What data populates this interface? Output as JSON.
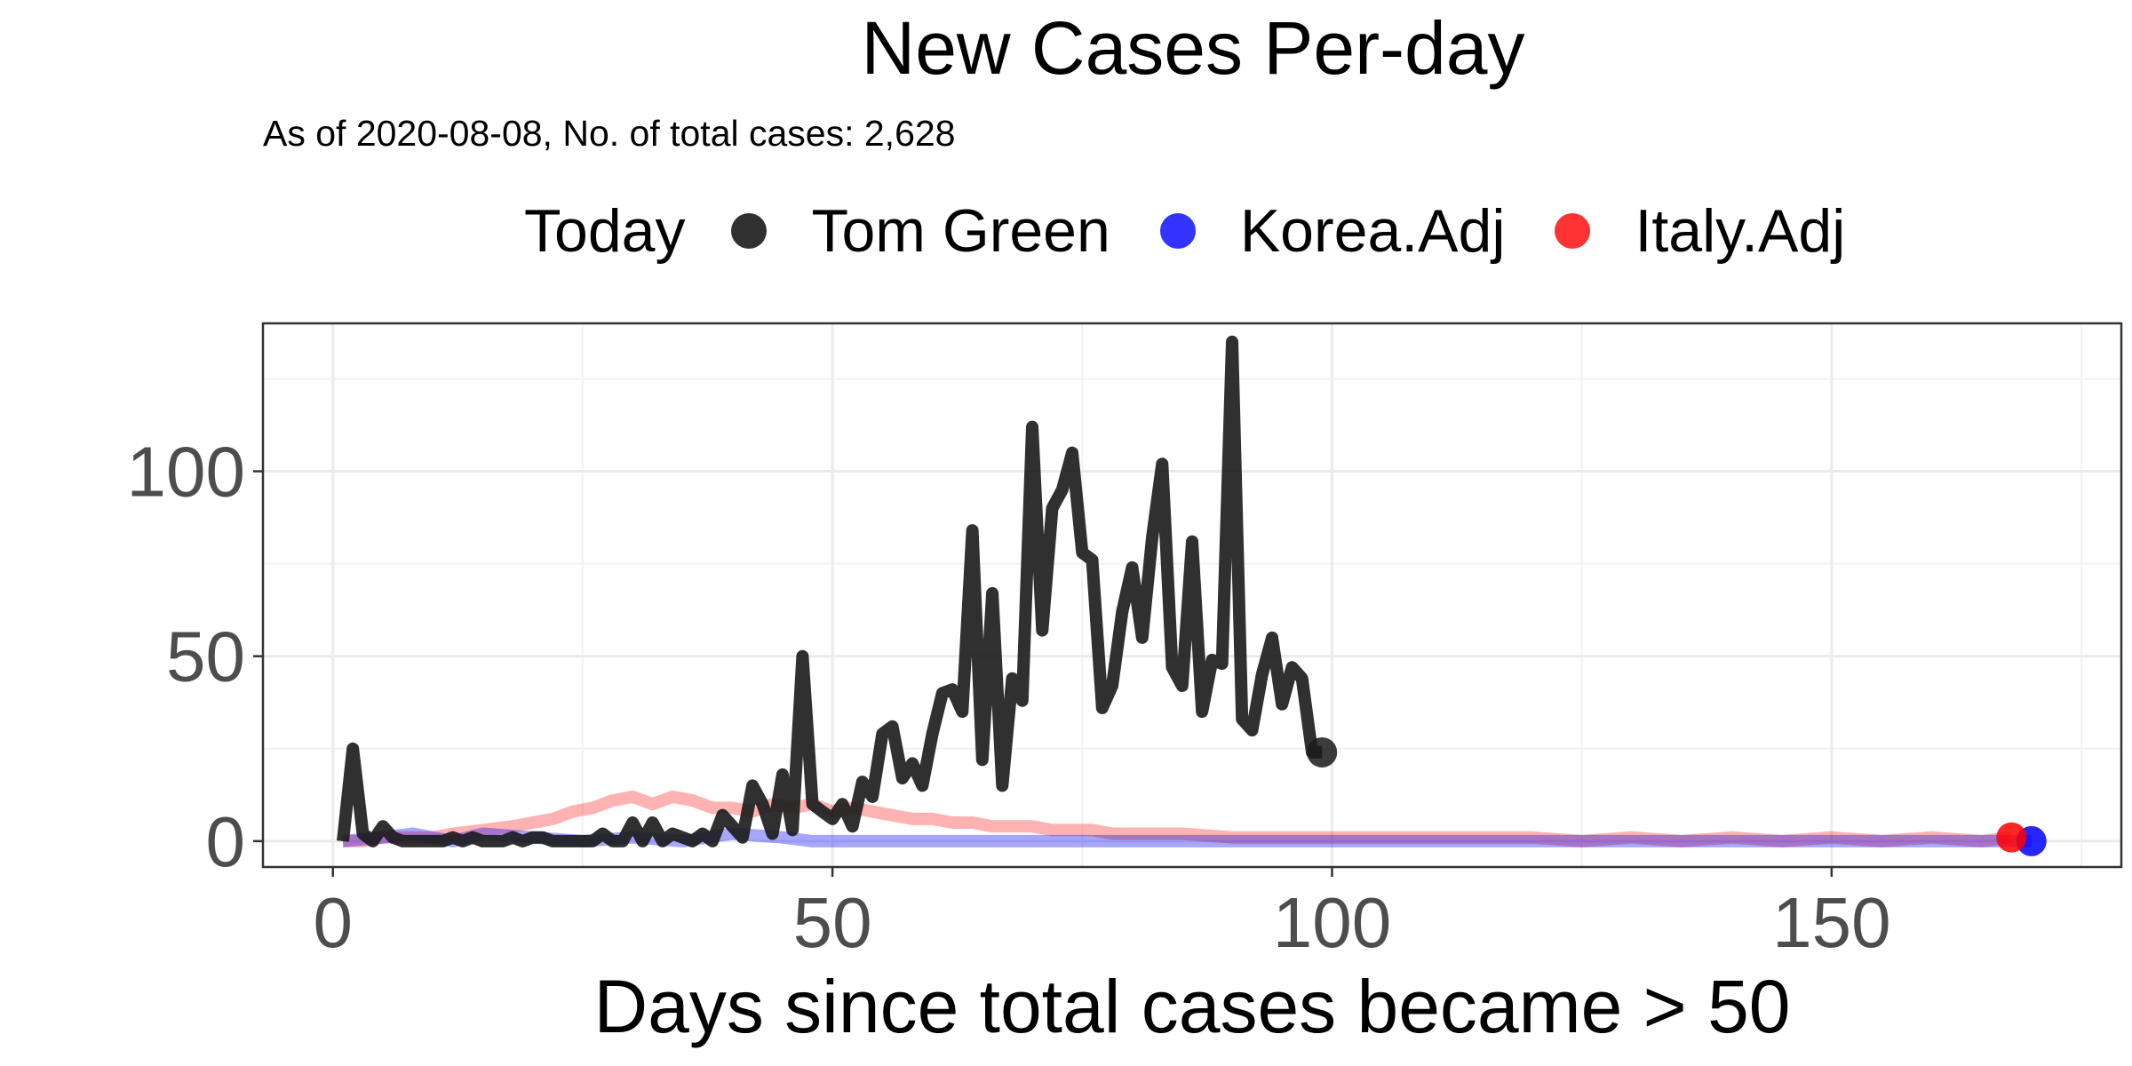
{
  "chart_data": {
    "type": "line",
    "title": "New Cases Per-day",
    "subtitle": "As of 2020-08-08, No. of total cases: 2,628",
    "xlabel": "Days since total cases became > 50",
    "ylabel": "",
    "xlim": [
      -7,
      179
    ],
    "ylim": [
      -7,
      140
    ],
    "x_ticks": [
      0,
      50,
      100,
      150
    ],
    "y_ticks": [
      0,
      50,
      100
    ],
    "grid": true,
    "legend": {
      "title": "Today",
      "placement": "top",
      "entries": [
        "Tom Green",
        "Korea.Adj",
        "Italy.Adj"
      ]
    },
    "series": [
      {
        "name": "Tom Green",
        "color": "#1a1a1a",
        "opacity": 0.9,
        "x": [
          1,
          2,
          3,
          4,
          5,
          6,
          7,
          8,
          9,
          10,
          11,
          12,
          13,
          14,
          15,
          16,
          17,
          18,
          19,
          20,
          21,
          22,
          23,
          24,
          25,
          26,
          27,
          28,
          29,
          30,
          31,
          32,
          33,
          34,
          35,
          36,
          37,
          38,
          39,
          40,
          41,
          42,
          43,
          44,
          45,
          46,
          47,
          48,
          49,
          50,
          51,
          52,
          53,
          54,
          55,
          56,
          57,
          58,
          59,
          60,
          61,
          62,
          63,
          64,
          65,
          66,
          67,
          68,
          69,
          70,
          71,
          72,
          73,
          74,
          75,
          76,
          77,
          78,
          79,
          80,
          81,
          82,
          83,
          84,
          85,
          86,
          87,
          88,
          89,
          90,
          91,
          92,
          93,
          94,
          95,
          96,
          97,
          98,
          99
        ],
        "y": [
          0,
          25,
          2,
          0,
          4,
          1,
          0,
          0,
          0,
          0,
          0,
          1,
          0,
          1,
          0,
          0,
          0,
          1,
          0,
          1,
          1,
          0,
          0,
          0,
          0,
          0,
          2,
          0,
          0,
          5,
          0,
          5,
          0,
          2,
          1,
          0,
          2,
          0,
          7,
          4,
          1,
          15,
          10,
          2,
          18,
          3,
          50,
          10,
          8,
          6,
          10,
          4,
          16,
          12,
          29,
          31,
          17,
          21,
          15,
          29,
          40,
          41,
          35,
          84,
          22,
          67,
          15,
          44,
          38,
          112,
          57,
          90,
          95,
          105,
          78,
          76,
          36,
          42,
          62,
          74,
          55,
          82,
          102,
          47,
          42,
          81,
          35,
          49,
          48,
          135,
          33,
          30,
          45,
          55,
          37,
          47,
          44,
          24,
          24
        ]
      },
      {
        "name": "Korea.Adj",
        "color": "#0000ff",
        "opacity": 0.35,
        "x": [
          1,
          5,
          8,
          10,
          12,
          15,
          20,
          25,
          30,
          35,
          40,
          45,
          48,
          50,
          55,
          60,
          65,
          70,
          75,
          80,
          85,
          90,
          95,
          100,
          105,
          110,
          115,
          120,
          125,
          130,
          135,
          140,
          145,
          150,
          155,
          160,
          165,
          170
        ],
        "y": [
          0,
          1,
          2,
          1,
          0,
          2,
          1,
          0,
          1,
          0,
          2,
          1,
          0,
          0,
          0,
          0,
          0,
          0,
          0,
          0,
          0,
          0,
          0,
          0,
          0,
          0,
          0,
          0,
          0,
          0,
          0,
          0,
          0,
          0,
          0,
          0,
          0,
          0
        ]
      },
      {
        "name": "Italy.Adj",
        "color": "#ff0000",
        "opacity": 0.3,
        "x": [
          1,
          3,
          5,
          8,
          10,
          12,
          15,
          18,
          20,
          22,
          24,
          26,
          28,
          30,
          32,
          34,
          36,
          38,
          40,
          42,
          44,
          46,
          48,
          50,
          52,
          54,
          56,
          58,
          60,
          62,
          64,
          66,
          68,
          70,
          72,
          74,
          76,
          78,
          80,
          85,
          90,
          95,
          100,
          105,
          110,
          115,
          120,
          125,
          130,
          135,
          140,
          145,
          150,
          155,
          160,
          165,
          168
        ],
        "y": [
          0,
          0,
          1,
          1,
          1,
          2,
          3,
          4,
          5,
          6,
          8,
          9,
          11,
          12,
          10,
          12,
          11,
          9,
          9,
          8,
          10,
          9,
          10,
          8,
          9,
          8,
          7,
          6,
          6,
          5,
          5,
          4,
          4,
          4,
          3,
          3,
          3,
          2,
          2,
          2,
          1,
          1,
          1,
          1,
          1,
          1,
          1,
          0,
          1,
          0,
          1,
          0,
          1,
          0,
          1,
          0,
          1
        ]
      }
    ],
    "today_points": [
      {
        "name": "Tom Green",
        "x": 99,
        "y": 24,
        "color": "#1a1a1a"
      },
      {
        "name": "Korea.Adj",
        "x": 170,
        "y": 0,
        "color": "#0000ff"
      },
      {
        "name": "Italy.Adj",
        "x": 168,
        "y": 1,
        "color": "#ff0000"
      }
    ]
  }
}
